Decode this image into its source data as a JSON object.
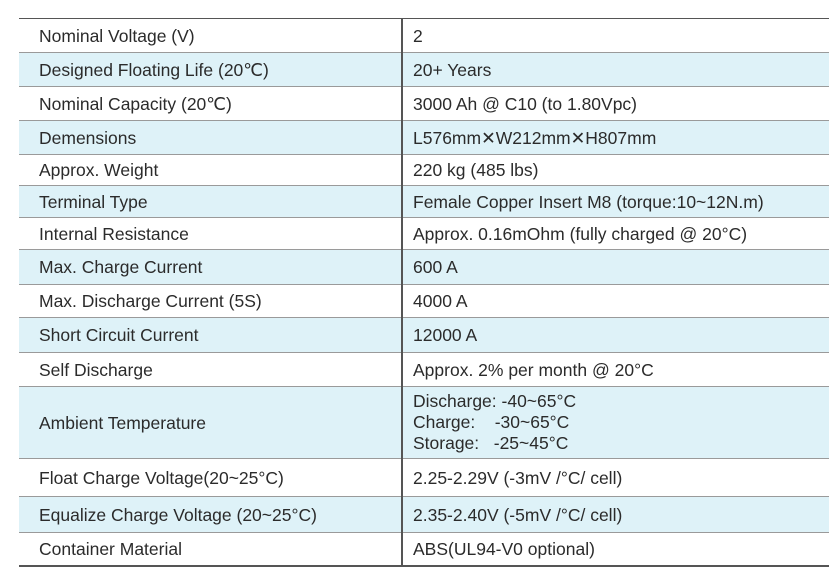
{
  "specs": [
    {
      "label": "Nominal Voltage (V)",
      "value": "2"
    },
    {
      "label": "Designed Floating Life (20℃)",
      "value": "20+ Years"
    },
    {
      "label": "Nominal Capacity (20℃)",
      "value": "3000 Ah @ C10 (to 1.80Vpc)"
    },
    {
      "label": "Demensions",
      "value": "L576mm✕W212mm✕H807mm"
    },
    {
      "label": "Approx. Weight",
      "value": "220 kg (485 lbs)"
    },
    {
      "label": "Terminal Type",
      "value": "Female Copper Insert M8 (torque:10~12N.m)"
    },
    {
      "label": "Internal Resistance",
      "value": "Approx. 0.16mOhm (fully charged @ 20°C)"
    },
    {
      "label": "Max. Charge Current",
      "value": "600 A"
    },
    {
      "label": "Max. Discharge Current (5S)",
      "value": "4000 A"
    },
    {
      "label": "Short Circuit Current",
      "value": "12000 A"
    },
    {
      "label": "Self Discharge",
      "value": "Approx. 2% per month @ 20°C"
    },
    {
      "label": "Ambient Temperature",
      "lines": [
        "Discharge: -40~65°C",
        "Charge:    -30~65°C",
        "Storage:   -25~45°C"
      ]
    },
    {
      "label": "Float Charge Voltage(20~25°C)",
      "value": "2.25-2.29V (-3mV /°C/ cell)"
    },
    {
      "label": "Equalize Charge Voltage (20~25°C)",
      "value": "2.35-2.40V (-5mV /°C/ cell)"
    },
    {
      "label": "Container Material",
      "value": "ABS(UL94-V0 optional)"
    }
  ],
  "colors": {
    "alt_row": "#def2f8",
    "border": "#555555"
  }
}
